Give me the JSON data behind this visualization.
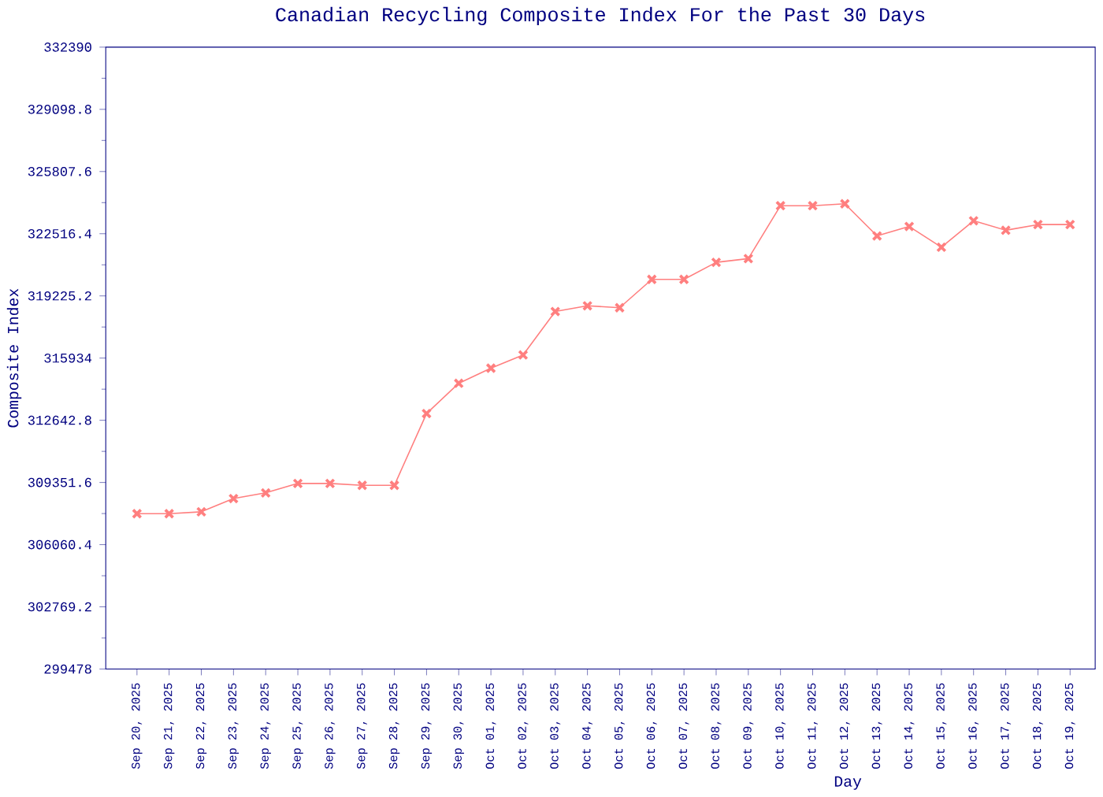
{
  "chart_data": {
    "type": "line",
    "title": "Canadian Recycling Composite Index For the Past 30 Days",
    "xlabel": "Day",
    "ylabel": "Composite Index",
    "categories": [
      "Sep 20, 2025",
      "Sep 21, 2025",
      "Sep 22, 2025",
      "Sep 23, 2025",
      "Sep 24, 2025",
      "Sep 25, 2025",
      "Sep 26, 2025",
      "Sep 27, 2025",
      "Sep 28, 2025",
      "Sep 29, 2025",
      "Sep 30, 2025",
      "Oct 01, 2025",
      "Oct 02, 2025",
      "Oct 03, 2025",
      "Oct 04, 2025",
      "Oct 05, 2025",
      "Oct 06, 2025",
      "Oct 07, 2025",
      "Oct 08, 2025",
      "Oct 09, 2025",
      "Oct 10, 2025",
      "Oct 11, 2025",
      "Oct 12, 2025",
      "Oct 13, 2025",
      "Oct 14, 2025",
      "Oct 15, 2025",
      "Oct 16, 2025",
      "Oct 17, 2025",
      "Oct 18, 2025",
      "Oct 19, 2025"
    ],
    "series": [
      {
        "color": "#ff7f7f",
        "values": [
          307700,
          307700,
          307800,
          308500,
          308800,
          309300,
          309300,
          309200,
          309200,
          313000,
          314600,
          315400,
          316100,
          318400,
          318700,
          318600,
          320100,
          320100,
          321000,
          321200,
          324000,
          324000,
          324100,
          322400,
          322900,
          321800,
          323200,
          322700,
          323000,
          323000
        ]
      }
    ],
    "ylim": [
      299478,
      332390
    ],
    "yticks": [
      {
        "value": 299478,
        "label": "299478"
      },
      {
        "value": 302769.2,
        "label": "302769.2"
      },
      {
        "value": 306060.4,
        "label": "306060.4"
      },
      {
        "value": 309351.6,
        "label": "309351.6"
      },
      {
        "value": 312642.8,
        "label": "312642.8"
      },
      {
        "value": 315934,
        "label": "315934"
      },
      {
        "value": 319225.2,
        "label": "319225.2"
      },
      {
        "value": 322516.4,
        "label": "322516.4"
      },
      {
        "value": 325807.6,
        "label": "325807.6"
      },
      {
        "value": 329098.8,
        "label": "329098.8"
      },
      {
        "value": 332390,
        "label": "332390"
      }
    ],
    "marker": "cross",
    "line_style": "solid"
  }
}
